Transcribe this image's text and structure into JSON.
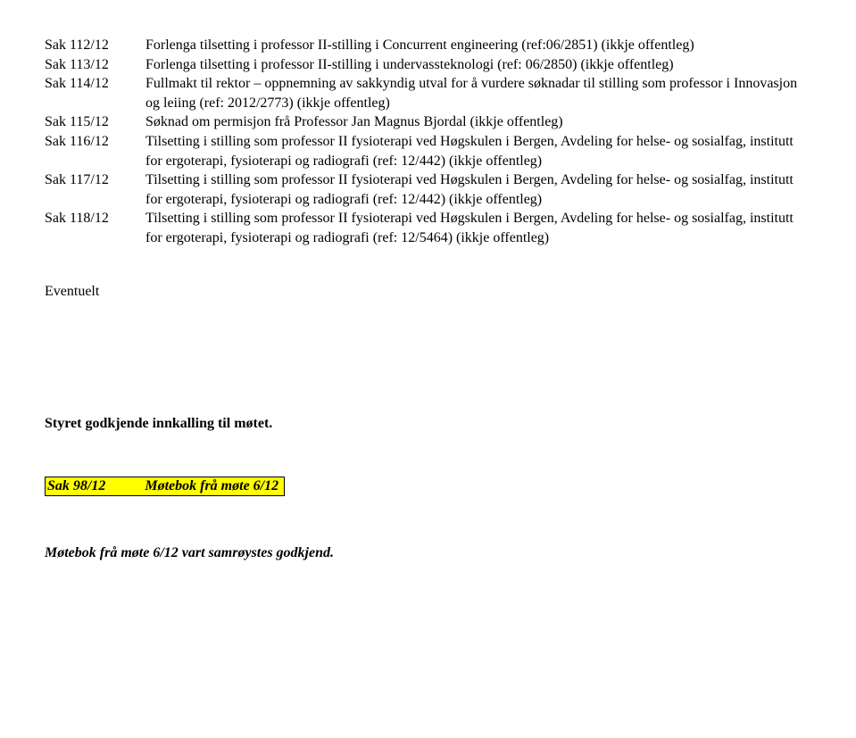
{
  "saks": [
    {
      "label": "Sak 112/12",
      "text": "Forlenga tilsetting i professor II-stilling i Concurrent engineering (ref:06/2851) (ikkje offentleg)"
    },
    {
      "label": "Sak 113/12",
      "text": "Forlenga tilsetting i professor II-stilling i undervassteknologi (ref: 06/2850) (ikkje offentleg)"
    },
    {
      "label": "Sak 114/12",
      "text": "Fullmakt til rektor – oppnemning av sakkyndig utval for å vurdere søknadar til stilling som professor i Innovasjon og leiing (ref: 2012/2773) (ikkje offentleg)"
    },
    {
      "label": "Sak 115/12",
      "text": "Søknad om permisjon frå Professor Jan Magnus Bjordal (ikkje offentleg)"
    },
    {
      "label": "Sak 116/12",
      "text": "Tilsetting i stilling som professor II fysioterapi ved Høgskulen i Bergen, Avdeling for helse- og sosialfag, institutt for ergoterapi, fysioterapi og radiografi (ref: 12/442) (ikkje offentleg)"
    },
    {
      "label": "Sak 117/12",
      "text": "Tilsetting i stilling som professor II fysioterapi ved Høgskulen i Bergen, Avdeling for helse- og sosialfag, institutt for ergoterapi, fysioterapi og radiografi (ref: 12/442) (ikkje offentleg)"
    },
    {
      "label": "Sak 118/12",
      "text": "Tilsetting i stilling som professor II fysioterapi ved Høgskulen i Bergen, Avdeling for helse- og sosialfag, institutt for ergoterapi, fysioterapi og radiografi (ref: 12/5464) (ikkje offentleg)"
    }
  ],
  "eventuelt": "Eventuelt",
  "approve": "Styret godkjende innkalling til møtet.",
  "highlight": {
    "num": "Sak 98/12",
    "title": "Møtebok frå møte 6/12"
  },
  "final": "Møtebok frå møte 6/12 vart samrøystes godkjend."
}
